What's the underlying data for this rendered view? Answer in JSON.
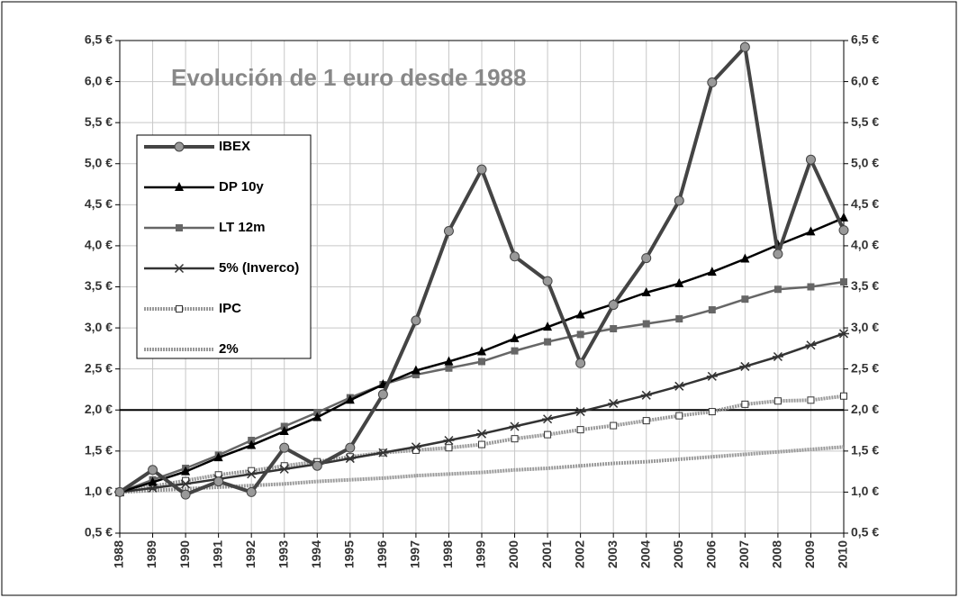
{
  "chart_data": {
    "type": "line",
    "title": "Evolución de 1 euro desde 1988",
    "categories": [
      "1988",
      "1989",
      "1990",
      "1991",
      "1992",
      "1993",
      "1994",
      "1995",
      "1996",
      "1997",
      "1998",
      "1999",
      "2000",
      "2001",
      "2002",
      "2003",
      "2004",
      "2005",
      "2006",
      "2007",
      "2008",
      "2009",
      "2010"
    ],
    "series": [
      {
        "name": "IBEX",
        "color": "#444444",
        "marker": "circle",
        "values": [
          1.0,
          1.27,
          0.97,
          1.13,
          1.0,
          1.54,
          1.32,
          1.54,
          2.19,
          3.09,
          4.18,
          4.93,
          3.87,
          3.57,
          2.57,
          3.28,
          3.85,
          4.55,
          5.99,
          6.42,
          3.9,
          5.05,
          4.19
        ]
      },
      {
        "name": "DP 10y",
        "color": "#000000",
        "marker": "triangle",
        "values": [
          1.0,
          1.12,
          1.25,
          1.42,
          1.57,
          1.74,
          1.91,
          2.12,
          2.31,
          2.48,
          2.59,
          2.71,
          2.87,
          3.01,
          3.16,
          3.29,
          3.43,
          3.54,
          3.68,
          3.84,
          4.01,
          4.17,
          4.34
        ]
      },
      {
        "name": "LT 12m",
        "color": "#666666",
        "marker": "square",
        "values": [
          1.0,
          1.15,
          1.29,
          1.45,
          1.63,
          1.8,
          1.97,
          2.15,
          2.31,
          2.43,
          2.51,
          2.59,
          2.72,
          2.83,
          2.92,
          2.99,
          3.05,
          3.11,
          3.22,
          3.35,
          3.47,
          3.5,
          3.56
        ]
      },
      {
        "name": "5% (Inverco)",
        "color": "#333333",
        "marker": "star",
        "values": [
          1.0,
          1.05,
          1.1,
          1.16,
          1.22,
          1.28,
          1.34,
          1.41,
          1.48,
          1.55,
          1.63,
          1.71,
          1.8,
          1.89,
          1.98,
          2.08,
          2.18,
          2.29,
          2.41,
          2.53,
          2.65,
          2.79,
          2.93
        ]
      },
      {
        "name": "IPC",
        "color": "#999999",
        "marker": "open-square",
        "values": [
          1.0,
          1.07,
          1.14,
          1.21,
          1.26,
          1.32,
          1.37,
          1.43,
          1.48,
          1.51,
          1.54,
          1.58,
          1.65,
          1.7,
          1.76,
          1.81,
          1.87,
          1.93,
          1.98,
          2.07,
          2.11,
          2.12,
          2.17
        ]
      },
      {
        "name": "2%",
        "color": "#999999",
        "marker": "none",
        "values": [
          1.0,
          1.02,
          1.04,
          1.06,
          1.08,
          1.1,
          1.13,
          1.15,
          1.17,
          1.2,
          1.22,
          1.24,
          1.27,
          1.29,
          1.32,
          1.35,
          1.37,
          1.4,
          1.43,
          1.46,
          1.49,
          1.52,
          1.55
        ]
      }
    ],
    "reference_line": 2,
    "ylim": [
      0.5,
      6.5
    ],
    "yticks": [
      {
        "value": 0.5,
        "label": "0,5 €"
      },
      {
        "value": 1,
        "label": "1,0 €"
      },
      {
        "value": 1.5,
        "label": "1,5 €"
      },
      {
        "value": 2,
        "label": "2,0 €"
      },
      {
        "value": 2.5,
        "label": "2,5 €"
      },
      {
        "value": 3,
        "label": "3,0 €"
      },
      {
        "value": 3.5,
        "label": "3,5 €"
      },
      {
        "value": 4,
        "label": "4,0 €"
      },
      {
        "value": 4.5,
        "label": "4,5 €"
      },
      {
        "value": 5,
        "label": "5,0 €"
      },
      {
        "value": 5.5,
        "label": "5,5 €"
      },
      {
        "value": 6,
        "label": "6,0 €"
      },
      {
        "value": 6.5,
        "label": "6,5 €"
      }
    ],
    "grid": true,
    "legend": "upper left"
  }
}
